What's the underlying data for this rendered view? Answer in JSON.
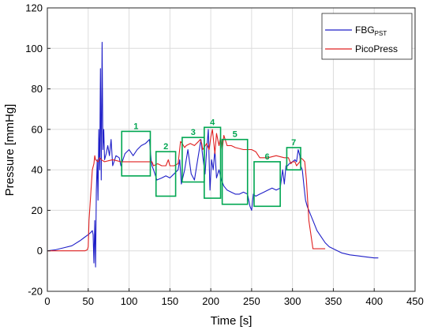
{
  "chart_data": {
    "type": "line",
    "xlabel": "Time [s]",
    "ylabel": "Pressure [mmHg]",
    "xlim": [
      0,
      450
    ],
    "ylim": [
      -20,
      120
    ],
    "xticks": [
      "0",
      "50",
      "100",
      "150",
      "200",
      "250",
      "300",
      "350",
      "400",
      "450"
    ],
    "yticks": [
      "-20",
      "0",
      "20",
      "40",
      "60",
      "80",
      "100",
      "120"
    ],
    "grid": true,
    "legend_position": "top-right",
    "colors": {
      "fbg": "#1f1fc8",
      "picopress": "#e02020",
      "boxes": "#00a651"
    },
    "legend": {
      "fbg_main": "FBG",
      "fbg_sub": "PST",
      "picopress": "PicoPress"
    },
    "series": [
      {
        "name": "FBG_PST",
        "x": [
          0,
          10,
          20,
          30,
          40,
          45,
          50,
          53,
          55,
          56,
          57,
          58,
          59,
          60,
          61,
          62,
          63,
          64,
          65,
          66,
          67,
          68,
          69,
          70,
          72,
          74,
          76,
          78,
          80,
          84,
          88,
          90,
          95,
          100,
          105,
          110,
          115,
          120,
          125,
          127,
          128,
          130,
          134,
          140,
          145,
          150,
          155,
          160,
          162,
          164,
          168,
          172,
          176,
          180,
          184,
          188,
          190,
          193,
          195,
          197,
          199,
          201,
          203,
          205,
          207,
          210,
          213,
          216,
          220,
          225,
          230,
          235,
          240,
          245,
          248,
          250,
          252,
          255,
          260,
          265,
          270,
          275,
          280,
          285,
          288,
          290,
          292,
          294,
          296,
          300,
          303,
          305,
          307,
          309,
          310,
          312,
          314,
          316,
          318,
          320,
          322,
          325,
          330,
          335,
          340,
          345,
          350,
          360,
          370,
          380,
          390,
          400,
          405
        ],
        "y": [
          0,
          0.5,
          1.5,
          2.5,
          5,
          6.5,
          8,
          9,
          10,
          8,
          -6,
          15,
          -8,
          30,
          45,
          25,
          60,
          40,
          90,
          35,
          103,
          50,
          60,
          45,
          48,
          52,
          47,
          55,
          42,
          47,
          46,
          42,
          48,
          50,
          47,
          50,
          52,
          53,
          55,
          45,
          42,
          40,
          35,
          36,
          37,
          36,
          38,
          40,
          45,
          33,
          40,
          50,
          38,
          35,
          45,
          55,
          47,
          38,
          50,
          60,
          30,
          45,
          40,
          50,
          36,
          40,
          35,
          32,
          30,
          29,
          28,
          28,
          29,
          28,
          22,
          20,
          28,
          27,
          28,
          29,
          30,
          31,
          30,
          31,
          40,
          33,
          42,
          42,
          43,
          44,
          45,
          44,
          50,
          47,
          42,
          40,
          32,
          25,
          22,
          20,
          18,
          15,
          10,
          7,
          4,
          2,
          1,
          -1,
          -2,
          -2.5,
          -3,
          -3.5,
          -3.5
        ]
      },
      {
        "name": "PicoPress",
        "x": [
          0,
          15,
          30,
          40,
          46,
          49,
          50,
          51,
          55,
          57,
          58,
          59,
          62,
          64,
          66,
          70,
          80,
          90,
          95,
          100,
          110,
          120,
          128,
          130,
          135,
          140,
          145,
          148,
          150,
          155,
          160,
          163,
          165,
          168,
          170,
          175,
          180,
          185,
          187,
          189,
          190,
          195,
          198,
          200,
          202,
          205,
          207,
          210,
          212,
          214,
          216,
          220,
          225,
          230,
          240,
          250,
          255,
          260,
          270,
          280,
          290,
          295,
          298,
          300,
          303,
          305,
          307,
          309,
          310,
          313,
          315,
          317,
          320,
          325,
          330,
          340
        ],
        "y": [
          0,
          0,
          0,
          0,
          0,
          0.5,
          2,
          15,
          40,
          43,
          47,
          45,
          44,
          46,
          45,
          44,
          45,
          44,
          44,
          44,
          44,
          44,
          44,
          42,
          43,
          42,
          42,
          45,
          42,
          42,
          43,
          54,
          53,
          51,
          52,
          53,
          52,
          54,
          55,
          53,
          50,
          53,
          50,
          56,
          60,
          48,
          58,
          52,
          56,
          50,
          57,
          52,
          52,
          51,
          50,
          50,
          49,
          46,
          46,
          47,
          46,
          46,
          43,
          44,
          44,
          42,
          43,
          44,
          46,
          45,
          44,
          35,
          15,
          1,
          1,
          1
        ]
      }
    ],
    "boxes": [
      {
        "label": "1",
        "x": [
          91,
          126
        ],
        "y": [
          37,
          59
        ]
      },
      {
        "label": "2",
        "x": [
          133,
          157
        ],
        "y": [
          27,
          49
        ]
      },
      {
        "label": "3",
        "x": [
          165,
          192
        ],
        "y": [
          34,
          56
        ]
      },
      {
        "label": "4",
        "x": [
          192,
          212
        ],
        "y": [
          26,
          61
        ]
      },
      {
        "label": "5",
        "x": [
          214,
          245
        ],
        "y": [
          23,
          55
        ]
      },
      {
        "label": "6",
        "x": [
          253,
          285
        ],
        "y": [
          22,
          44
        ]
      },
      {
        "label": "7",
        "x": [
          293,
          310
        ],
        "y": [
          40,
          51
        ]
      }
    ]
  }
}
